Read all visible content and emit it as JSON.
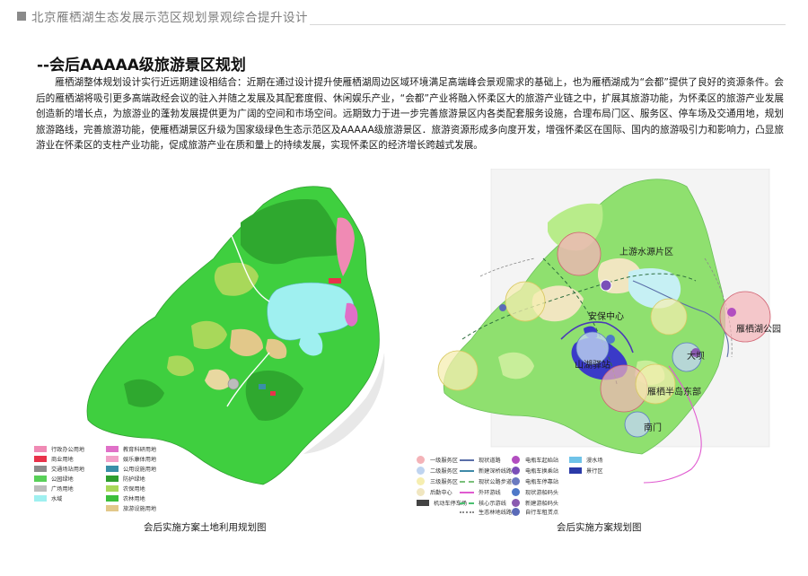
{
  "header": {
    "title": "北京雁栖湖生态发展示范区规划景观综合提升设计"
  },
  "section": {
    "title": "--会后AAAAA级旅游景区规划",
    "paragraph": "雁栖湖整体规划设计实行近远期建设相结合：近期在通过设计提升使雁栖湖周边区域环境满足高端峰会景观需求的基础上，也为雁栖湖成为“会都”提供了良好的资源条件。会后的雁栖湖将吸引更多高端政经会议的驻入并随之发展及其配套度假、休闲娱乐产业，“会都”产业将融入怀柔区大的旅游产业链之中，扩展其旅游功能，为怀柔区的旅游产业发展创造新的增长点，为旅游业的蓬勃发展提供更为广阔的空间和市场空间。远期致力于进一步完善旅游景区内各类配套服务设施，合理布局门区、服务区、停车场及交通用地，规划旅游路线，完善旅游功能，使雁栖湖景区升级为国家级绿色生态示范区及AAAAA级旅游景区．旅游资源形成多向度开发，增强怀柔区在国际、国内的旅游吸引力和影响力，凸显旅游业在怀柔区的支柱产业功能，促成旅游产业在质和量上的持续发展，实现怀柔区的经济增长跨越式发展。"
  },
  "left_map": {
    "caption": "会后实施方案土地利用规划图",
    "legend": [
      {
        "label": "行政办公用地",
        "color": "#f08ab4"
      },
      {
        "label": "教育科研用地",
        "color": "#e070c8"
      },
      {
        "label": "商业用地",
        "color": "#e8324a"
      },
      {
        "label": "娱乐康体用地",
        "color": "#f2a0c8"
      },
      {
        "label": "交通场站用地",
        "color": "#8c8c8c"
      },
      {
        "label": "公用设施用地",
        "color": "#3a8fa8"
      },
      {
        "label": "公园绿地",
        "color": "#58d058"
      },
      {
        "label": "防护绿地",
        "color": "#2f9e2f"
      },
      {
        "label": "广场用地",
        "color": "#bcbcbc"
      },
      {
        "label": "农保用地",
        "color": "#a8d85a"
      },
      {
        "label": "水域",
        "color": "#9ff0f0"
      },
      {
        "label": "农林用地",
        "color": "#3cbf3c"
      },
      {
        "label": "",
        "color": "#e8d8a0"
      },
      {
        "label": "旅游设施用地",
        "color": "#e2c88a"
      }
    ]
  },
  "right_map": {
    "caption": "会后实施方案规划图",
    "labels": [
      "上游水源片区",
      "安保中心",
      "雁栖湖公园",
      "山湖驿站",
      "大坝",
      "雁栖半岛东部",
      "南门"
    ],
    "legend": [
      {
        "label": "一级服务区",
        "kind": "circle",
        "color": "#f4b3b8"
      },
      {
        "label": "现状道路",
        "kind": "line",
        "color": "#5a6ea8"
      },
      {
        "label": "电瓶车起始站",
        "kind": "circle",
        "color": "#b24ec0"
      },
      {
        "label": "漫水场",
        "kind": "rect",
        "color": "#6fc3e8"
      },
      {
        "label": "二级服务区",
        "kind": "circle",
        "color": "#bfd4f0"
      },
      {
        "label": "新建深桥线路",
        "kind": "line",
        "color": "#3f8aa8"
      },
      {
        "label": "电瓶车换乘站",
        "kind": "circle",
        "color": "#7a4fb8"
      },
      {
        "label": "景行区",
        "kind": "rect",
        "color": "#2a3aa8"
      },
      {
        "label": "三级服务区",
        "kind": "circle",
        "color": "#f6eeb0"
      },
      {
        "label": "现状公路步道",
        "kind": "line",
        "color": "#7ac07a"
      },
      {
        "label": "电瓶车停靠站",
        "kind": "circle",
        "color": "#6a7ac0"
      },
      {
        "label": "后勤中心",
        "kind": "circle",
        "color": "#f0e6c0"
      },
      {
        "label": "外环游线",
        "kind": "line",
        "color": "#e05ad0"
      },
      {
        "label": "现状游船码头",
        "kind": "circle",
        "color": "#4e78c8"
      },
      {
        "label": "机动车停车场",
        "kind": "rect",
        "color": "#444444"
      },
      {
        "label": "核心示游线",
        "kind": "line",
        "color": "#4ac070"
      },
      {
        "label": "新建游船码头",
        "kind": "circle",
        "color": "#8a5ab0"
      },
      {
        "label": "生态林地线路",
        "kind": "line",
        "color": "#8a8a8a"
      },
      {
        "label": "自行车租赁点",
        "kind": "circle",
        "color": "#5a6ab8"
      }
    ]
  }
}
